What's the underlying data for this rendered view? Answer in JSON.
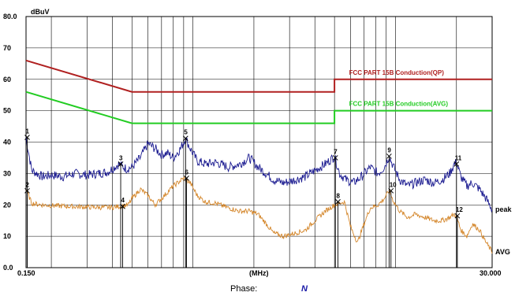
{
  "chart_data": {
    "type": "line",
    "ylabel": "dBuV",
    "xlabel": "(MHz)",
    "x_scale": "log",
    "xlim": [
      0.15,
      30.0
    ],
    "ylim": [
      0,
      80
    ],
    "y_ticks": [
      "80.0",
      "70",
      "60",
      "50",
      "40",
      "30",
      "20",
      "10",
      "0.0"
    ],
    "x_start_label": "0.150",
    "x_end_label": "30.000",
    "grid": true,
    "limits": [
      {
        "name": "FCC PART 15B Conduction(QP)",
        "color": "#b02020",
        "points": [
          [
            0.15,
            66
          ],
          [
            0.5,
            56
          ],
          [
            5.0,
            56
          ],
          [
            5.0,
            60
          ],
          [
            30.0,
            60
          ]
        ]
      },
      {
        "name": "FCC PART 15B Conduction(AVG)",
        "color": "#22cc22",
        "points": [
          [
            0.15,
            56
          ],
          [
            0.5,
            46
          ],
          [
            5.0,
            46
          ],
          [
            5.0,
            50
          ],
          [
            30.0,
            50
          ]
        ]
      }
    ],
    "series": [
      {
        "name": "peak",
        "color": "#1a1a90",
        "points": [
          [
            0.15,
            41.5
          ],
          [
            0.16,
            31
          ],
          [
            0.18,
            29
          ],
          [
            0.2,
            29.5
          ],
          [
            0.23,
            29
          ],
          [
            0.26,
            30
          ],
          [
            0.3,
            29.5
          ],
          [
            0.34,
            30
          ],
          [
            0.38,
            30.5
          ],
          [
            0.43,
            33
          ],
          [
            0.47,
            31.5
          ],
          [
            0.5,
            32
          ],
          [
            0.55,
            35
          ],
          [
            0.6,
            39.5
          ],
          [
            0.65,
            38
          ],
          [
            0.7,
            36
          ],
          [
            0.75,
            36.5
          ],
          [
            0.8,
            35
          ],
          [
            0.87,
            38
          ],
          [
            0.92,
            41.2
          ],
          [
            0.97,
            38
          ],
          [
            1.05,
            34
          ],
          [
            1.15,
            33
          ],
          [
            1.3,
            33.5
          ],
          [
            1.5,
            32
          ],
          [
            1.7,
            33
          ],
          [
            1.9,
            35
          ],
          [
            2.1,
            32
          ],
          [
            2.3,
            30
          ],
          [
            2.5,
            28
          ],
          [
            2.8,
            27
          ],
          [
            3.2,
            28
          ],
          [
            3.6,
            29
          ],
          [
            4.0,
            31
          ],
          [
            4.5,
            33
          ],
          [
            5.0,
            35.5
          ],
          [
            5.3,
            30
          ],
          [
            5.7,
            28
          ],
          [
            6.2,
            27
          ],
          [
            6.8,
            29
          ],
          [
            7.5,
            32
          ],
          [
            8.2,
            30
          ],
          [
            8.8,
            32
          ],
          [
            9.3,
            35.5
          ],
          [
            9.8,
            32
          ],
          [
            10.5,
            28
          ],
          [
            11.5,
            26
          ],
          [
            12.5,
            27
          ],
          [
            14,
            28
          ],
          [
            15.5,
            27
          ],
          [
            17,
            28
          ],
          [
            18.5,
            30
          ],
          [
            19.5,
            33
          ],
          [
            20,
            33.5
          ],
          [
            21,
            29
          ],
          [
            22.5,
            26
          ],
          [
            24,
            27
          ],
          [
            26,
            25
          ],
          [
            28,
            22
          ],
          [
            30,
            18.5
          ]
        ]
      },
      {
        "name": "AVG",
        "color": "#d4862a",
        "points": [
          [
            0.15,
            25
          ],
          [
            0.16,
            20.5
          ],
          [
            0.18,
            20
          ],
          [
            0.2,
            19.8
          ],
          [
            0.25,
            19.5
          ],
          [
            0.3,
            19.3
          ],
          [
            0.35,
            19.2
          ],
          [
            0.4,
            19.2
          ],
          [
            0.43,
            19.5
          ],
          [
            0.48,
            20
          ],
          [
            0.5,
            22
          ],
          [
            0.55,
            25
          ],
          [
            0.6,
            23
          ],
          [
            0.65,
            20
          ],
          [
            0.7,
            22
          ],
          [
            0.8,
            26
          ],
          [
            0.9,
            28.5
          ],
          [
            0.97,
            27
          ],
          [
            1.05,
            23
          ],
          [
            1.15,
            21
          ],
          [
            1.3,
            20.5
          ],
          [
            1.5,
            19
          ],
          [
            1.7,
            18
          ],
          [
            1.9,
            18
          ],
          [
            2.1,
            17
          ],
          [
            2.3,
            14
          ],
          [
            2.5,
            11
          ],
          [
            2.8,
            10
          ],
          [
            3.2,
            11
          ],
          [
            3.6,
            12
          ],
          [
            4.0,
            15
          ],
          [
            4.5,
            18
          ],
          [
            5.0,
            20
          ],
          [
            5.3,
            20.5
          ],
          [
            5.6,
            21
          ],
          [
            6.0,
            13
          ],
          [
            6.5,
            8
          ],
          [
            7.0,
            14
          ],
          [
            7.5,
            19
          ],
          [
            8.2,
            20
          ],
          [
            8.8,
            22
          ],
          [
            9.3,
            24.5
          ],
          [
            9.8,
            21
          ],
          [
            10.5,
            18
          ],
          [
            11.5,
            16
          ],
          [
            12.5,
            17
          ],
          [
            14,
            16
          ],
          [
            15.5,
            15
          ],
          [
            17,
            15
          ],
          [
            18.5,
            16
          ],
          [
            19.5,
            17
          ],
          [
            20,
            16.5
          ],
          [
            21,
            12
          ],
          [
            22.5,
            10
          ],
          [
            24,
            14
          ],
          [
            26,
            12
          ],
          [
            28,
            8
          ],
          [
            30,
            5
          ]
        ]
      }
    ],
    "markers": [
      {
        "label": "1",
        "x": 0.152,
        "y": 41.5
      },
      {
        "label": "2",
        "x": 0.152,
        "y": 24.5
      },
      {
        "label": "3",
        "x": 0.44,
        "y": 33
      },
      {
        "label": "4",
        "x": 0.45,
        "y": 19.5
      },
      {
        "label": "5",
        "x": 0.92,
        "y": 41.2
      },
      {
        "label": "6",
        "x": 0.93,
        "y": 28.5
      },
      {
        "label": "7",
        "x": 5.05,
        "y": 35
      },
      {
        "label": "8",
        "x": 5.2,
        "y": 21
      },
      {
        "label": "9",
        "x": 9.3,
        "y": 35.5
      },
      {
        "label": "10",
        "x": 9.5,
        "y": 24.5
      },
      {
        "label": "11",
        "x": 20.0,
        "y": 33
      },
      {
        "label": "12",
        "x": 20.2,
        "y": 16.5
      }
    ],
    "series_end_labels": [
      "peak",
      "AVG"
    ]
  },
  "phase": {
    "label": "Phase:",
    "value": "N"
  }
}
